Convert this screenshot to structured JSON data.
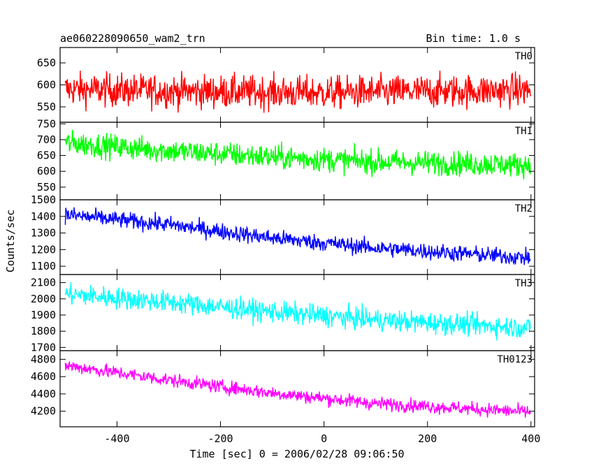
{
  "chart_data": {
    "type": "line",
    "title": "ae060228090650_wam2_trn",
    "subtitle": "Bin time: 1.0 s",
    "xlabel": "Time [sec] 0 = 2006/02/28 09:06:50",
    "ylabel": "Counts/sec",
    "xlim": [
      -510,
      407
    ],
    "x_ticks": [
      "-400",
      "-200",
      "0",
      "200",
      "400"
    ],
    "x_tick_values": [
      -400,
      -200,
      0,
      200,
      400
    ],
    "x_range_data": [
      -500,
      399
    ],
    "grid": false,
    "legend": "none",
    "panels": [
      {
        "name": "TH0",
        "color": "#ff0000",
        "ylim": [
          515,
          685
        ],
        "y_ticks": [
          "550",
          "600",
          "650"
        ],
        "y_tick_values": [
          550,
          600,
          650
        ],
        "trend": [
          [
            -500,
            590
          ],
          [
            -250,
            585
          ],
          [
            0,
            582
          ],
          [
            200,
            585
          ],
          [
            399,
            588
          ]
        ],
        "noise_amplitude": 34
      },
      {
        "name": "TH1",
        "color": "#00ff00",
        "ylim": [
          510,
          755
        ],
        "y_ticks": [
          "550",
          "600",
          "650",
          "700",
          "750"
        ],
        "y_tick_values": [
          550,
          600,
          650,
          700,
          750
        ],
        "trend": [
          [
            -500,
            690
          ],
          [
            -300,
            665
          ],
          [
            -100,
            645
          ],
          [
            100,
            630
          ],
          [
            399,
            620
          ]
        ],
        "noise_amplitude": 35
      },
      {
        "name": "TH2",
        "color": "#0000ff",
        "ylim": [
          1050,
          1500
        ],
        "y_ticks": [
          "1100",
          "1200",
          "1300",
          "1400",
          "1500"
        ],
        "y_tick_values": [
          1100,
          1200,
          1300,
          1400,
          1500
        ],
        "trend": [
          [
            -500,
            1410
          ],
          [
            -300,
            1350
          ],
          [
            -100,
            1270
          ],
          [
            100,
            1210
          ],
          [
            399,
            1150
          ]
        ],
        "noise_amplitude": 45
      },
      {
        "name": "TH3",
        "color": "#00ffff",
        "ylim": [
          1680,
          2150
        ],
        "y_ticks": [
          "1700",
          "1800",
          "1900",
          "2000",
          "2100"
        ],
        "y_tick_values": [
          1700,
          1800,
          1900,
          2000,
          2100
        ],
        "trend": [
          [
            -500,
            2030
          ],
          [
            -300,
            1980
          ],
          [
            -100,
            1920
          ],
          [
            100,
            1870
          ],
          [
            399,
            1820
          ]
        ],
        "noise_amplitude": 60
      },
      {
        "name": "TH0123",
        "color": "#ff00ff",
        "ylim": [
          4020,
          4900
        ],
        "y_ticks": [
          "4200",
          "4400",
          "4600",
          "4800"
        ],
        "y_tick_values": [
          4200,
          4400,
          4600,
          4800
        ],
        "trend": [
          [
            -500,
            4730
          ],
          [
            -300,
            4560
          ],
          [
            -100,
            4410
          ],
          [
            100,
            4290
          ],
          [
            399,
            4190
          ]
        ],
        "noise_amplitude": 70
      }
    ]
  }
}
